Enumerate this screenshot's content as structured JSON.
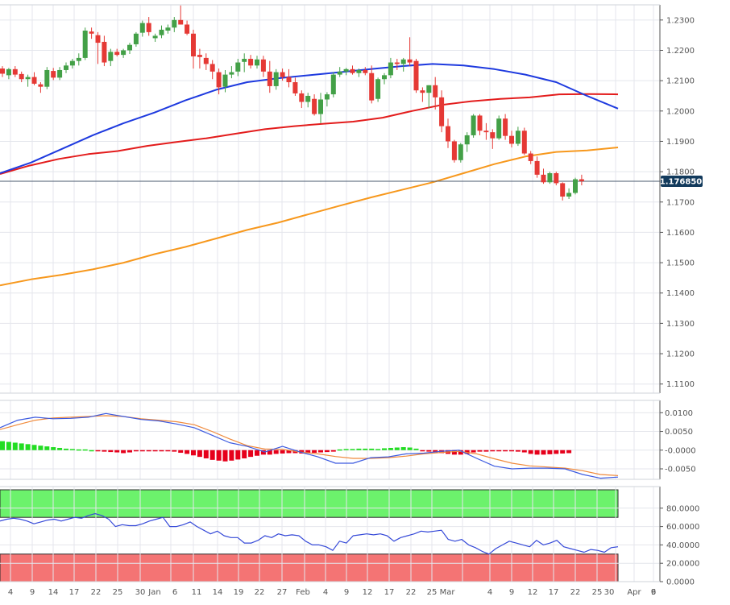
{
  "colors": {
    "up": "#43a047",
    "down": "#e53935",
    "sma50": "#1e3adf",
    "sma100": "#e31c1c",
    "sma200": "#f7981d",
    "grid": "#e4e6ec",
    "axis": "#555555",
    "price_line": "#4a5a6e",
    "price_badge_bg": "#123a5c",
    "macd_line": "#3d5be0",
    "macd_signal": "#f08a3c",
    "hist_pos": "#22dd22",
    "hist_neg": "#e6001b",
    "rsi_line": "#3549d8",
    "ob_fill": "#6cf26c",
    "os_fill": "#f47474"
  },
  "price_badge": "1.176850",
  "x_tick_labels": [
    "4",
    "9",
    "14",
    "17",
    "22",
    "25",
    "30",
    "Jan",
    "6",
    "11",
    "14",
    "19",
    "22",
    "27",
    "Feb",
    "4",
    "9",
    "12",
    "17",
    "22",
    "25",
    "Mar",
    "4",
    "9",
    "12",
    "17",
    "22",
    "25",
    "30",
    "Apr",
    "6",
    "9"
  ],
  "price_axis_labels": [
    "1.2300",
    "1.2200",
    "1.2100",
    "1.2000",
    "1.1900",
    "1.1800",
    "1.1700",
    "1.1600",
    "1.1500",
    "1.1400",
    "1.1300",
    "1.1200",
    "1.1100"
  ],
  "macd_axis_labels": [
    "0.0100",
    "0.0050",
    "-0.0000",
    "-0.0050"
  ],
  "rsi_axis_labels": [
    "80.0000",
    "60.0000",
    "40.0000",
    "20.0000",
    "0.0000"
  ],
  "chart_data": [
    {
      "type": "candlestick",
      "y_range": [
        1.107,
        1.235
      ],
      "grid": true,
      "last_price": 1.17685,
      "candles": [
        [
          1.214,
          1.2148,
          1.2112,
          1.2123
        ],
        [
          1.2118,
          1.2142,
          1.2105,
          1.2138
        ],
        [
          1.2138,
          1.2148,
          1.2112,
          1.212
        ],
        [
          1.2122,
          1.213,
          1.2095,
          1.2105
        ],
        [
          1.2105,
          1.212,
          1.208,
          1.2112
        ],
        [
          1.2112,
          1.2128,
          1.2085,
          1.209
        ],
        [
          1.2088,
          1.2095,
          1.206,
          1.208
        ],
        [
          1.208,
          1.2145,
          1.2072,
          1.2135
        ],
        [
          1.2132,
          1.2142,
          1.2102,
          1.211
        ],
        [
          1.211,
          1.2145,
          1.2102,
          1.2135
        ],
        [
          1.2135,
          1.216,
          1.2125,
          1.215
        ],
        [
          1.215,
          1.2172,
          1.214,
          1.2165
        ],
        [
          1.2165,
          1.219,
          1.215,
          1.2175
        ],
        [
          1.2175,
          1.2275,
          1.2168,
          1.2265
        ],
        [
          1.2262,
          1.2275,
          1.2238,
          1.2255
        ],
        [
          1.225,
          1.226,
          1.2155,
          1.2225
        ],
        [
          1.2228,
          1.2248,
          1.2148,
          1.216
        ],
        [
          1.2165,
          1.2205,
          1.2148,
          1.2195
        ],
        [
          1.2195,
          1.2205,
          1.218,
          1.2185
        ],
        [
          1.2185,
          1.2205,
          1.2175,
          1.22
        ],
        [
          1.22,
          1.2225,
          1.2188,
          1.2218
        ],
        [
          1.222,
          1.226,
          1.2212,
          1.2255
        ],
        [
          1.2258,
          1.2298,
          1.2245,
          1.229
        ],
        [
          1.229,
          1.231,
          1.2248,
          1.226
        ],
        [
          1.224,
          1.2255,
          1.2228,
          1.2248
        ],
        [
          1.225,
          1.2282,
          1.224,
          1.2268
        ],
        [
          1.2265,
          1.2285,
          1.2255,
          1.2275
        ],
        [
          1.2275,
          1.231,
          1.226,
          1.23
        ],
        [
          1.23,
          1.2348,
          1.2285,
          1.2285
        ],
        [
          1.2285,
          1.2298,
          1.225,
          1.2255
        ],
        [
          1.2255,
          1.2268,
          1.214,
          1.218
        ],
        [
          1.2185,
          1.2205,
          1.214,
          1.2178
        ],
        [
          1.2175,
          1.219,
          1.2135,
          1.2155
        ],
        [
          1.2155,
          1.2168,
          1.2105,
          1.213
        ],
        [
          1.2128,
          1.214,
          1.2055,
          1.2078
        ],
        [
          1.208,
          1.2135,
          1.2062,
          1.212
        ],
        [
          1.212,
          1.2148,
          1.2108,
          1.2128
        ],
        [
          1.213,
          1.2172,
          1.2115,
          1.216
        ],
        [
          1.2162,
          1.219,
          1.2128,
          1.2172
        ],
        [
          1.2172,
          1.2185,
          1.214,
          1.215
        ],
        [
          1.215,
          1.2182,
          1.214,
          1.217
        ],
        [
          1.217,
          1.2182,
          1.2112,
          1.213
        ],
        [
          1.213,
          1.2165,
          1.206,
          1.2082
        ],
        [
          1.2082,
          1.2138,
          1.207,
          1.2128
        ],
        [
          1.2128,
          1.214,
          1.21,
          1.2112
        ],
        [
          1.2112,
          1.2138,
          1.2078,
          1.2095
        ],
        [
          1.2095,
          1.211,
          1.205,
          1.2058
        ],
        [
          1.2058,
          1.2068,
          1.201,
          1.203
        ],
        [
          1.203,
          1.206,
          1.2012,
          1.205
        ],
        [
          1.204,
          1.2055,
          1.1985,
          1.199
        ],
        [
          1.199,
          1.206,
          1.196,
          1.2038
        ],
        [
          1.2038,
          1.2062,
          1.2015,
          1.2055
        ],
        [
          1.2055,
          1.2128,
          1.2045,
          1.212
        ],
        [
          1.212,
          1.2145,
          1.2112,
          1.213
        ],
        [
          1.213,
          1.2142,
          1.2118,
          1.2138
        ],
        [
          1.2138,
          1.215,
          1.212,
          1.2125
        ],
        [
          1.2125,
          1.214,
          1.2112,
          1.2135
        ],
        [
          1.2135,
          1.2145,
          1.2118,
          1.2125
        ],
        [
          1.2125,
          1.215,
          1.2025,
          1.2035
        ],
        [
          1.204,
          1.211,
          1.203,
          1.2105
        ],
        [
          1.2105,
          1.2125,
          1.2088,
          1.2118
        ],
        [
          1.2118,
          1.2175,
          1.2108,
          1.216
        ],
        [
          1.216,
          1.2172,
          1.2135,
          1.2155
        ],
        [
          1.2155,
          1.2175,
          1.213,
          1.217
        ],
        [
          1.217,
          1.2243,
          1.2148,
          1.216
        ],
        [
          1.2165,
          1.2172,
          1.206,
          1.2068
        ],
        [
          1.2068,
          1.2078,
          1.203,
          1.206
        ],
        [
          1.206,
          1.2085,
          1.2008,
          1.2085
        ],
        [
          1.2085,
          1.2112,
          1.2005,
          1.2045
        ],
        [
          1.2045,
          1.2068,
          1.193,
          1.195
        ],
        [
          1.195,
          1.1975,
          1.1878,
          1.19
        ],
        [
          1.19,
          1.1905,
          1.183,
          1.1838
        ],
        [
          1.1838,
          1.1895,
          1.183,
          1.189
        ],
        [
          1.189,
          1.193,
          1.1865,
          1.192
        ],
        [
          1.192,
          1.199,
          1.1912,
          1.1985
        ],
        [
          1.1985,
          1.199,
          1.192,
          1.1935
        ],
        [
          1.1935,
          1.196,
          1.1905,
          1.193
        ],
        [
          1.193,
          1.194,
          1.1875,
          1.191
        ],
        [
          1.191,
          1.1985,
          1.1905,
          1.1975
        ],
        [
          1.1975,
          1.199,
          1.1905,
          1.1918
        ],
        [
          1.1918,
          1.1935,
          1.188,
          1.1892
        ],
        [
          1.1892,
          1.1948,
          1.1885,
          1.1935
        ],
        [
          1.1935,
          1.1945,
          1.1855,
          1.186
        ],
        [
          1.186,
          1.1868,
          1.1825,
          1.1835
        ],
        [
          1.1835,
          1.185,
          1.178,
          1.179
        ],
        [
          1.179,
          1.181,
          1.176,
          1.1765
        ],
        [
          1.1765,
          1.18,
          1.176,
          1.1795
        ],
        [
          1.1795,
          1.18,
          1.1755,
          1.1762
        ],
        [
          1.1762,
          1.1765,
          1.1705,
          1.1718
        ],
        [
          1.1718,
          1.1745,
          1.171,
          1.173
        ],
        [
          1.173,
          1.178,
          1.1725,
          1.1775
        ],
        [
          1.1775,
          1.179,
          1.1755,
          1.17685
        ]
      ],
      "sma50": [
        [
          1.1795,
          1.183,
          1.1875,
          1.192,
          1.196,
          1.1995,
          1.2035,
          1.207,
          1.2095,
          1.2108,
          1.2118,
          1.2128,
          1.2138,
          1.2148,
          1.2155,
          1.215,
          1.2138,
          1.212,
          1.2095,
          1.205,
          1.2008
        ]
      ],
      "sma100": [
        [
          1.1792,
          1.182,
          1.1842,
          1.1858,
          1.1868,
          1.1885,
          1.1898,
          1.191,
          1.1925,
          1.194,
          1.195,
          1.1958,
          1.1965,
          1.1978,
          1.2,
          1.202,
          1.2032,
          1.204,
          1.2045,
          1.2055,
          1.2056,
          1.2055
        ]
      ],
      "sma200": [
        [
          1.1425,
          1.1445,
          1.146,
          1.1478,
          1.15,
          1.1528,
          1.1552,
          1.158,
          1.1608,
          1.1632,
          1.166,
          1.1688,
          1.1715,
          1.174,
          1.1765,
          1.1795,
          1.1825,
          1.185,
          1.1865,
          1.187,
          1.188
        ]
      ]
    },
    {
      "type": "macd",
      "y_range": [
        -0.0078,
        0.0133
      ],
      "macd": [
        0.006,
        0.008,
        0.0088,
        0.0084,
        0.0085,
        0.0088,
        0.0098,
        0.009,
        0.0082,
        0.0078,
        0.007,
        0.006,
        0.004,
        0.002,
        0.001,
        -0.0005,
        0.001,
        -0.0005,
        -0.0018,
        -0.0035,
        -0.0035,
        -0.002,
        -0.0018,
        -0.001,
        -0.0008,
        -0.0003,
        0.0,
        -0.0022,
        -0.0043,
        -0.005,
        -0.0048,
        -0.0048,
        -0.005,
        -0.0065,
        -0.0075,
        -0.0072
      ],
      "signal": [
        0.0055,
        0.0068,
        0.008,
        0.0086,
        0.0088,
        0.009,
        0.0092,
        0.009,
        0.0084,
        0.008,
        0.0076,
        0.0068,
        0.005,
        0.003,
        0.0012,
        0.0003,
        0.0002,
        -0.0005,
        -0.001,
        -0.0017,
        -0.0022,
        -0.0022,
        -0.002,
        -0.0016,
        -0.001,
        -0.0006,
        -0.0003,
        -0.001,
        -0.0023,
        -0.0035,
        -0.0042,
        -0.0045,
        -0.0048,
        -0.0055,
        -0.0065,
        -0.0068
      ],
      "histogram": [
        0.0024,
        0.0022,
        0.002,
        0.0018,
        0.0016,
        0.0014,
        0.0012,
        0.001,
        0.0008,
        0.0006,
        0.0004,
        0.0003,
        0.0002,
        0.0002,
        0.0,
        -0.0003,
        -0.0004,
        -0.0005,
        -0.0006,
        -0.0008,
        -0.0006,
        -0.0003,
        -0.0003,
        -0.0002,
        -0.0002,
        -0.0002,
        -0.0003,
        -0.0004,
        -0.0007,
        -0.001,
        -0.0014,
        -0.0018,
        -0.0022,
        -0.0026,
        -0.0028,
        -0.003,
        -0.0028,
        -0.0025,
        -0.0022,
        -0.0018,
        -0.0015,
        -0.0012,
        -0.0012,
        -0.001,
        -0.0009,
        -0.0008,
        -0.0008,
        -0.0009,
        -0.0008,
        -0.0007,
        -0.0006,
        -0.0005,
        -0.0004,
        0.0002,
        0.0003,
        0.0003,
        0.0004,
        0.0004,
        0.0004,
        0.0003,
        0.0005,
        0.0006,
        0.0007,
        0.0008,
        0.0007,
        0.0004,
        -0.0002,
        -0.0004,
        -0.0006,
        -0.0008,
        -0.001,
        -0.0012,
        -0.0012,
        -0.001,
        -0.0006,
        -0.0004,
        -0.0004,
        -0.0003,
        -0.0002,
        -0.0002,
        -0.0003,
        -0.0004,
        -0.0006,
        -0.001,
        -0.0012,
        -0.0012,
        -0.0011,
        -0.001,
        -0.0009,
        -0.0008
      ]
    },
    {
      "type": "rsi",
      "y_range": [
        0,
        100
      ],
      "overbought": [
        70,
        100
      ],
      "oversold": [
        0,
        30
      ],
      "values": [
        66,
        68,
        69,
        68,
        66,
        63,
        65,
        67,
        68,
        66,
        68,
        70,
        69,
        72,
        74,
        72,
        68,
        60,
        62,
        61,
        61,
        63,
        66,
        68,
        70,
        60,
        60,
        62,
        65,
        60,
        56,
        52,
        55,
        50,
        48,
        48,
        42,
        42,
        45,
        50,
        48,
        52,
        50,
        51,
        50,
        44,
        40,
        40,
        38,
        34,
        44,
        42,
        50,
        51,
        52,
        51,
        52,
        50,
        44,
        48,
        50,
        52,
        55,
        54,
        55,
        56,
        46,
        44,
        46,
        40,
        37,
        33,
        30,
        36,
        40,
        44,
        42,
        40,
        38,
        45,
        40,
        42,
        45,
        38,
        36,
        34,
        32,
        35,
        34,
        32,
        37,
        38
      ]
    }
  ]
}
